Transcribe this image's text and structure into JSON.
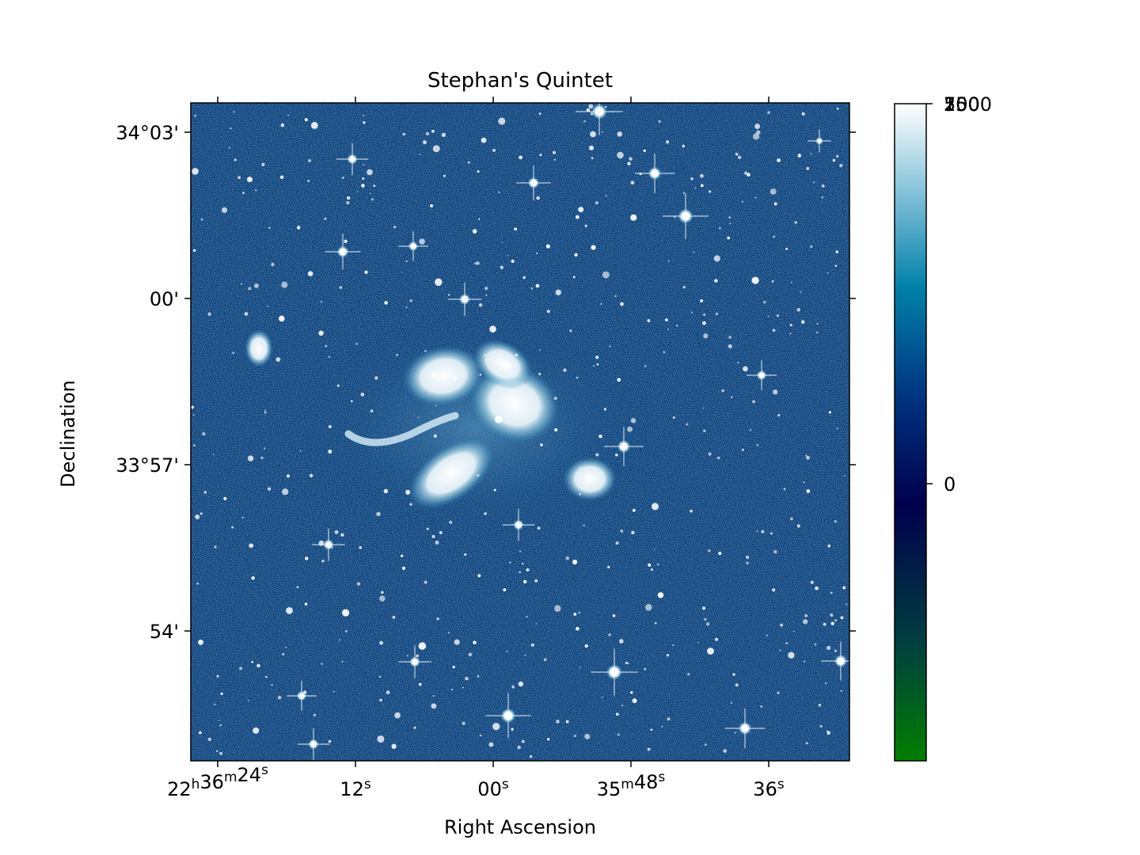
{
  "chart_data": {
    "type": "heatmap",
    "title": "Stephan's Quintet",
    "xlabel": "Right Ascension",
    "ylabel": "Declination",
    "x_ticks": [
      {
        "label": "22h36m24s"
      },
      {
        "label": "12s"
      },
      {
        "label": "00s"
      },
      {
        "label": "35m48s"
      },
      {
        "label": "36s"
      }
    ],
    "y_ticks": [
      {
        "label": "34°03'"
      },
      {
        "label": "00'"
      },
      {
        "label": "33°57'"
      },
      {
        "label": "54'"
      }
    ],
    "colorbar": {
      "colormap": "ocean",
      "colors": [
        "#007f00",
        "#003f3f",
        "#00004d",
        "#00327f",
        "#0081a8",
        "#7fbfd8",
        "#ffffff"
      ],
      "tick_labels": [
        "0",
        "250",
        "500",
        "750",
        "1000"
      ],
      "overlapping_top_labels": [
        "250",
        "500",
        "750",
        "1000"
      ]
    },
    "image": {
      "background_color": "#0b3f78",
      "galaxy_group": "Stephan's Quintet",
      "description_colors": {
        "sky": "#0b3f78",
        "bright": "#ffffff",
        "mid": "#5fa3c8"
      }
    }
  }
}
